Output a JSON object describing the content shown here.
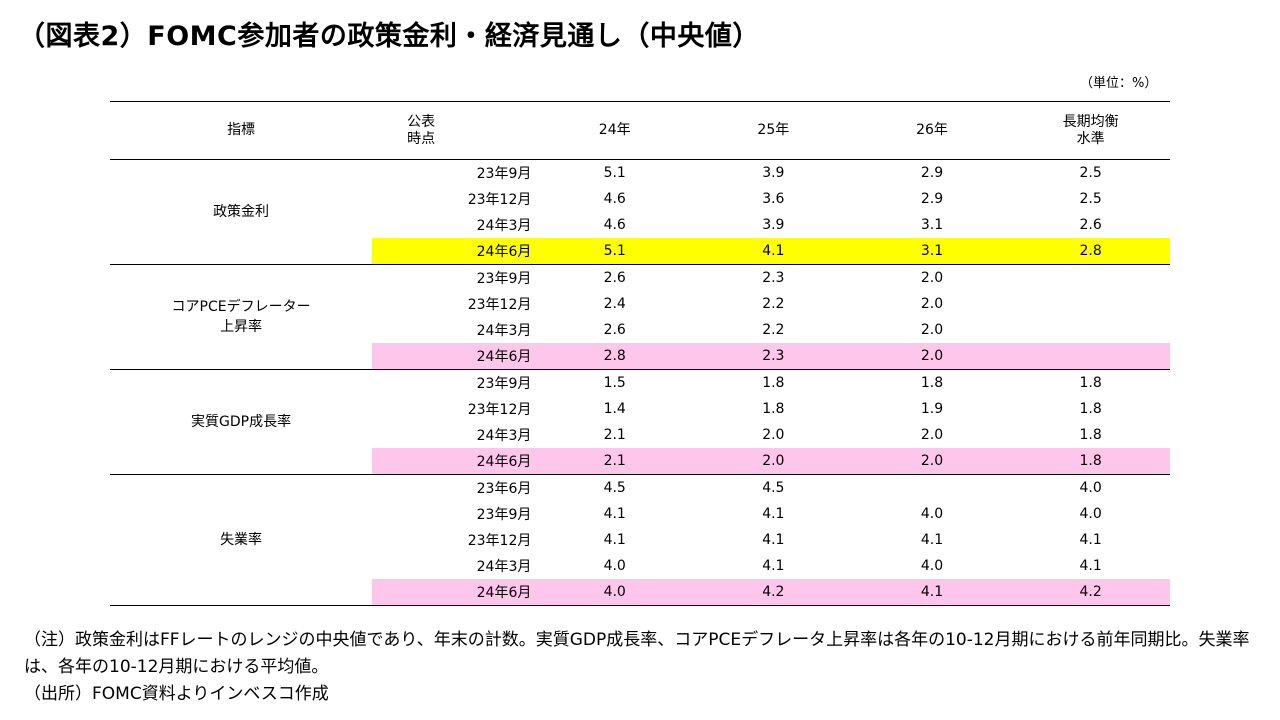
{
  "title": "（図表2）FOMC参加者の政策金利・経済見通し（中央値）",
  "unit": "（単位：%）",
  "headers": {
    "indicator": "指標",
    "published_line1": "公表",
    "published_line2": "時点",
    "y24": "24年",
    "y25": "25年",
    "y26": "26年",
    "longrun_line1": "長期均衡",
    "longrun_line2": "水準"
  },
  "groups": [
    {
      "label_line1": "政策金利",
      "label_line2": "",
      "rows": [
        {
          "pub": "23年9月",
          "y24": "5.1",
          "y25": "3.9",
          "y26": "2.9",
          "lr": "2.5",
          "highlight": ""
        },
        {
          "pub": "23年12月",
          "y24": "4.6",
          "y25": "3.6",
          "y26": "2.9",
          "lr": "2.5",
          "highlight": ""
        },
        {
          "pub": "24年3月",
          "y24": "4.6",
          "y25": "3.9",
          "y26": "3.1",
          "lr": "2.6",
          "highlight": ""
        },
        {
          "pub": "24年6月",
          "y24": "5.1",
          "y25": "4.1",
          "y26": "3.1",
          "lr": "2.8",
          "highlight": "yellow"
        }
      ]
    },
    {
      "label_line1": "コアPCEデフレーター",
      "label_line2": "上昇率",
      "rows": [
        {
          "pub": "23年9月",
          "y24": "2.6",
          "y25": "2.3",
          "y26": "2.0",
          "lr": "",
          "highlight": ""
        },
        {
          "pub": "23年12月",
          "y24": "2.4",
          "y25": "2.2",
          "y26": "2.0",
          "lr": "",
          "highlight": ""
        },
        {
          "pub": "24年3月",
          "y24": "2.6",
          "y25": "2.2",
          "y26": "2.0",
          "lr": "",
          "highlight": ""
        },
        {
          "pub": "24年6月",
          "y24": "2.8",
          "y25": "2.3",
          "y26": "2.0",
          "lr": "",
          "highlight": "pink"
        }
      ]
    },
    {
      "label_line1": "実質GDP成長率",
      "label_line2": "",
      "rows": [
        {
          "pub": "23年9月",
          "y24": "1.5",
          "y25": "1.8",
          "y26": "1.8",
          "lr": "1.8",
          "highlight": ""
        },
        {
          "pub": "23年12月",
          "y24": "1.4",
          "y25": "1.8",
          "y26": "1.9",
          "lr": "1.8",
          "highlight": ""
        },
        {
          "pub": "24年3月",
          "y24": "2.1",
          "y25": "2.0",
          "y26": "2.0",
          "lr": "1.8",
          "highlight": ""
        },
        {
          "pub": "24年6月",
          "y24": "2.1",
          "y25": "2.0",
          "y26": "2.0",
          "lr": "1.8",
          "highlight": "pink"
        }
      ]
    },
    {
      "label_line1": "失業率",
      "label_line2": "",
      "rows": [
        {
          "pub": "23年6月",
          "y24": "4.5",
          "y25": "4.5",
          "y26": "",
          "lr": "4.0",
          "highlight": ""
        },
        {
          "pub": "23年9月",
          "y24": "4.1",
          "y25": "4.1",
          "y26": "4.0",
          "lr": "4.0",
          "highlight": ""
        },
        {
          "pub": "23年12月",
          "y24": "4.1",
          "y25": "4.1",
          "y26": "4.1",
          "lr": "4.1",
          "highlight": ""
        },
        {
          "pub": "24年3月",
          "y24": "4.0",
          "y25": "4.1",
          "y26": "4.0",
          "lr": "4.1",
          "highlight": ""
        },
        {
          "pub": "24年6月",
          "y24": "4.0",
          "y25": "4.2",
          "y26": "4.1",
          "lr": "4.2",
          "highlight": "pink"
        }
      ]
    }
  ],
  "notes": [
    "（注）政策金利はFFレートのレンジの中央値であり、年末の計数。実質GDP成長率、コアPCEデフレータ上昇率は各年の10-12月期における前年同期比。失業率は、各年の10-12月期における平均値。",
    "（出所）FOMC資料よりインベスコ作成"
  ]
}
